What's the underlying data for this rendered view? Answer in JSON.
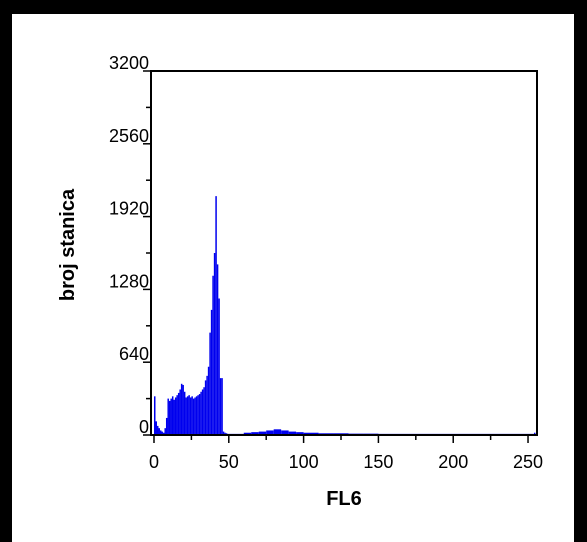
{
  "chart_data": {
    "type": "bar",
    "title": "",
    "xlabel": "FL6",
    "ylabel": "broj stanica",
    "xlim": [
      -2,
      256
    ],
    "ylim": [
      0,
      3200
    ],
    "xticks": [
      0,
      50,
      100,
      150,
      200,
      250
    ],
    "xtick_labels": [
      "0",
      "50",
      "100",
      "150",
      "200",
      "250"
    ],
    "yticks": [
      0,
      640,
      1280,
      1920,
      2560,
      3200
    ],
    "ytick_labels": [
      "0",
      "640",
      "1280",
      "1920",
      "2560",
      "3200"
    ],
    "grid": false,
    "legend": "none",
    "bar_color": "#0000ee",
    "x": [
      0,
      1,
      2,
      3,
      4,
      5,
      6,
      7,
      8,
      9,
      10,
      11,
      12,
      13,
      14,
      15,
      16,
      17,
      18,
      19,
      20,
      21,
      22,
      23,
      24,
      25,
      26,
      27,
      28,
      29,
      30,
      31,
      32,
      33,
      34,
      35,
      36,
      37,
      38,
      39,
      40,
      41,
      42,
      43,
      44,
      45,
      46,
      47,
      48,
      49,
      50,
      55,
      60,
      65,
      70,
      75,
      80,
      85,
      90,
      95,
      100,
      110,
      120,
      130,
      140,
      150,
      160,
      170,
      180,
      190,
      200,
      210,
      220,
      230,
      240,
      250,
      254
    ],
    "values": [
      340,
      120,
      80,
      60,
      40,
      30,
      20,
      60,
      150,
      320,
      300,
      320,
      340,
      310,
      330,
      350,
      370,
      400,
      450,
      440,
      380,
      330,
      340,
      350,
      330,
      340,
      320,
      330,
      340,
      350,
      360,
      380,
      400,
      420,
      480,
      520,
      600,
      900,
      1100,
      1400,
      1600,
      2100,
      1500,
      1200,
      500,
      500,
      30,
      20,
      15,
      10,
      10,
      10,
      20,
      25,
      30,
      40,
      50,
      40,
      30,
      25,
      20,
      15,
      15,
      12,
      12,
      10,
      10,
      10,
      10,
      10,
      10,
      10,
      10,
      10,
      10,
      10,
      20
    ]
  }
}
